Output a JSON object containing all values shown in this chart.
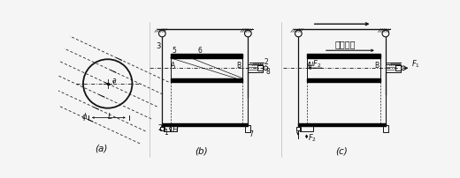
{
  "bg_color": "#f5f5f5",
  "line_color": "#111111",
  "label_a": "(a)",
  "label_b": "(b)",
  "label_c": "(c)",
  "fig_width": 5.2,
  "fig_height": 2.03,
  "dpi": 100
}
